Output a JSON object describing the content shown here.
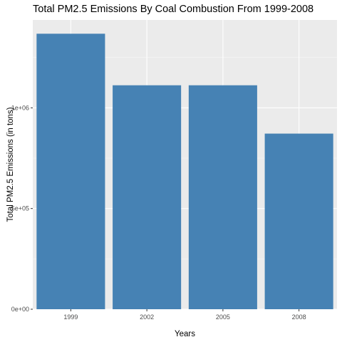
{
  "chart_data": {
    "type": "bar",
    "title": "Total PM2.5 Emissions By Coal Combustion From 1999-2008",
    "xlabel": "Years",
    "ylabel": "Total PM2.5 Emissions (in tons)",
    "categories": [
      "1999",
      "2002",
      "2005",
      "2008"
    ],
    "values": [
      1368000,
      1112000,
      1112000,
      872000
    ],
    "ylim": [
      0,
      1436400
    ],
    "yticks": [
      0,
      500000,
      1000000
    ],
    "ytick_labels": [
      "0e+00",
      "5e+05",
      "1e+06"
    ],
    "grid": true,
    "legend": "none",
    "colors": {
      "bar": "#4682B4",
      "panel": "#EBEBEB",
      "grid_major": "#FFFFFF",
      "grid_minor": "#F5F5F5",
      "text": "#000000",
      "tick_text": "#4D4D4D",
      "tick_mark": "#333333"
    }
  }
}
